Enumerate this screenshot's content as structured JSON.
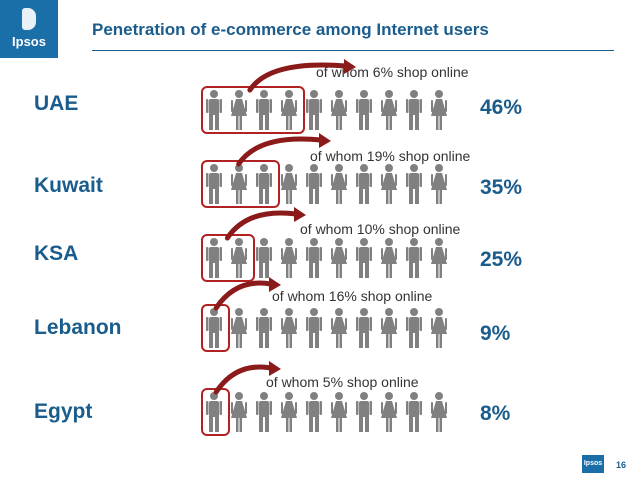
{
  "logo": {
    "text": "Ipsos"
  },
  "title": "Penetration of e-commerce among Internet users",
  "rows": [
    {
      "country": "UAE",
      "percent": "46%",
      "note": "of whom 6% shop online",
      "highlighted": 4
    },
    {
      "country": "Kuwait",
      "percent": "35%",
      "note": "of whom 19% shop online",
      "highlighted": 3
    },
    {
      "country": "KSA",
      "percent": "25%",
      "note": "of whom 10% shop online",
      "highlighted": 2
    },
    {
      "country": "Lebanon",
      "percent": "9%",
      "note": "of whom 16% shop online",
      "highlighted": 1
    },
    {
      "country": "Egypt",
      "percent": "8%",
      "note": "of whom 5% shop online",
      "highlighted": 1
    }
  ],
  "figure_count": 10,
  "colors": {
    "brand": "#1a5c8c",
    "figure": "#808080",
    "highlight": "#b22222"
  },
  "footer": {
    "logo_text": "Ipsos",
    "page": "16"
  }
}
